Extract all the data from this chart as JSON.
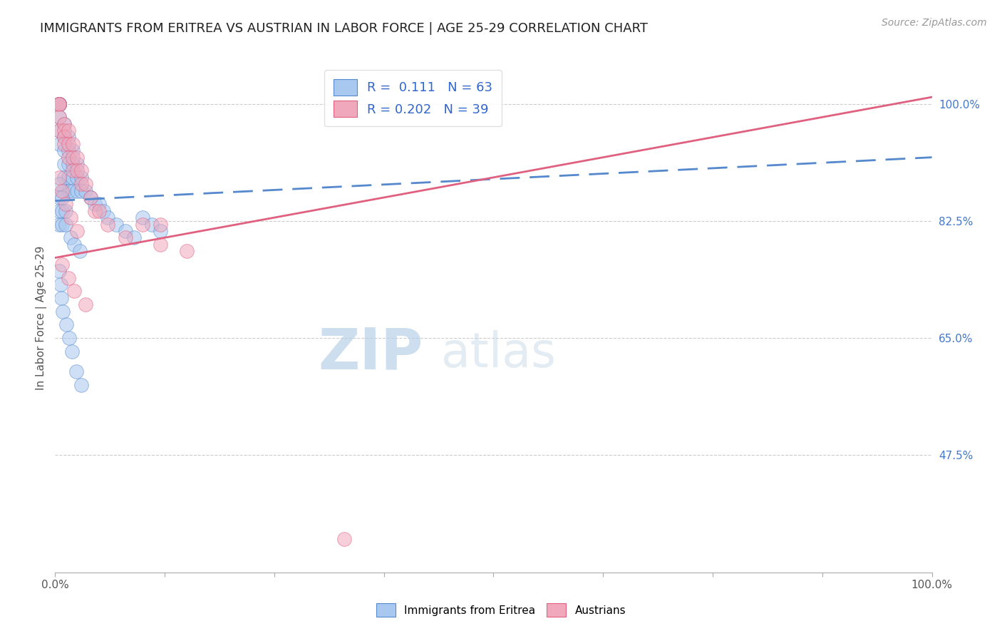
{
  "title": "IMMIGRANTS FROM ERITREA VS AUSTRIAN IN LABOR FORCE | AGE 25-29 CORRELATION CHART",
  "source": "Source: ZipAtlas.com",
  "ylabel": "In Labor Force | Age 25-29",
  "xlim": [
    0.0,
    1.0
  ],
  "ylim": [
    0.3,
    1.06
  ],
  "right_yticks": [
    1.0,
    0.825,
    0.65,
    0.475
  ],
  "right_yticklabels": [
    "100.0%",
    "82.5%",
    "65.0%",
    "47.5%"
  ],
  "R_blue": 0.111,
  "N_blue": 63,
  "R_pink": 0.202,
  "N_pink": 39,
  "blue_color": "#a8c8f0",
  "pink_color": "#f0a8bc",
  "trend_blue_color": "#5588cc",
  "trend_pink_color": "#e06080",
  "legend_blue_label": "Immigrants from Eritrea",
  "legend_pink_label": "Austrians",
  "watermark_zip": "ZIP",
  "watermark_atlas": "atlas",
  "blue_trend_x0": 0.0,
  "blue_trend_y0": 0.855,
  "blue_trend_x1": 1.0,
  "blue_trend_y1": 0.92,
  "pink_trend_x0": 0.0,
  "pink_trend_y0": 0.77,
  "pink_trend_x1": 1.0,
  "pink_trend_y1": 1.01,
  "blue_x": [
    0.005,
    0.005,
    0.005,
    0.005,
    0.005,
    0.005,
    0.005,
    0.005,
    0.005,
    0.005,
    0.01,
    0.01,
    0.01,
    0.01,
    0.01,
    0.01,
    0.015,
    0.015,
    0.015,
    0.015,
    0.015,
    0.02,
    0.02,
    0.02,
    0.02,
    0.025,
    0.025,
    0.025,
    0.03,
    0.03,
    0.035,
    0.04,
    0.045,
    0.05,
    0.055,
    0.06,
    0.07,
    0.08,
    0.09,
    0.1,
    0.11,
    0.12,
    0.005,
    0.005,
    0.005,
    0.005,
    0.008,
    0.008,
    0.008,
    0.012,
    0.012,
    0.018,
    0.022,
    0.028,
    0.005,
    0.006,
    0.007,
    0.009,
    0.013,
    0.016,
    0.019,
    0.024,
    0.03
  ],
  "blue_y": [
    1.0,
    1.0,
    1.0,
    1.0,
    1.0,
    1.0,
    1.0,
    0.98,
    0.96,
    0.94,
    0.97,
    0.95,
    0.93,
    0.91,
    0.89,
    0.87,
    0.95,
    0.93,
    0.91,
    0.89,
    0.87,
    0.93,
    0.91,
    0.89,
    0.87,
    0.91,
    0.89,
    0.87,
    0.89,
    0.87,
    0.87,
    0.86,
    0.85,
    0.85,
    0.84,
    0.83,
    0.82,
    0.81,
    0.8,
    0.83,
    0.82,
    0.81,
    0.88,
    0.86,
    0.84,
    0.82,
    0.86,
    0.84,
    0.82,
    0.84,
    0.82,
    0.8,
    0.79,
    0.78,
    0.75,
    0.73,
    0.71,
    0.69,
    0.67,
    0.65,
    0.63,
    0.6,
    0.58
  ],
  "pink_x": [
    0.005,
    0.005,
    0.005,
    0.005,
    0.005,
    0.01,
    0.01,
    0.01,
    0.01,
    0.015,
    0.015,
    0.015,
    0.02,
    0.02,
    0.02,
    0.025,
    0.025,
    0.03,
    0.03,
    0.035,
    0.04,
    0.045,
    0.05,
    0.06,
    0.08,
    0.1,
    0.12,
    0.15,
    0.005,
    0.008,
    0.012,
    0.018,
    0.025,
    0.008,
    0.015,
    0.022,
    0.035,
    0.12,
    0.33
  ],
  "pink_y": [
    1.0,
    1.0,
    1.0,
    0.98,
    0.96,
    0.97,
    0.96,
    0.95,
    0.94,
    0.96,
    0.94,
    0.92,
    0.94,
    0.92,
    0.9,
    0.92,
    0.9,
    0.9,
    0.88,
    0.88,
    0.86,
    0.84,
    0.84,
    0.82,
    0.8,
    0.82,
    0.79,
    0.78,
    0.89,
    0.87,
    0.85,
    0.83,
    0.81,
    0.76,
    0.74,
    0.72,
    0.7,
    0.82,
    0.35
  ]
}
